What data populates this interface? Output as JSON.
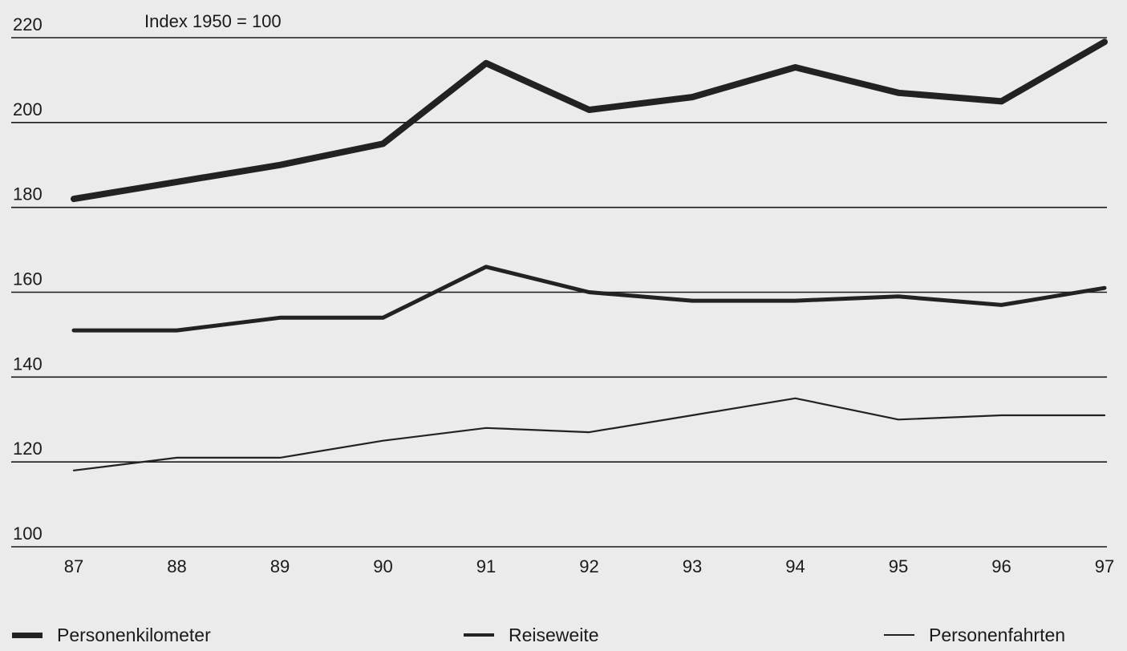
{
  "chart_data": {
    "type": "line",
    "subtitle": "Index 1950 = 100",
    "x": [
      "87",
      "88",
      "89",
      "90",
      "91",
      "92",
      "93",
      "94",
      "95",
      "96",
      "97"
    ],
    "yticks": [
      "220",
      "200",
      "180",
      "160",
      "140",
      "120",
      "100"
    ],
    "ylim": [
      100,
      220
    ],
    "grid": true,
    "legend_position": "bottom",
    "series": [
      {
        "name": "Personenkilometer",
        "values": [
          182,
          186,
          190,
          195,
          214,
          203,
          206,
          213,
          207,
          205,
          219
        ],
        "weight": "heavy"
      },
      {
        "name": "Reiseweite",
        "values": [
          151,
          151,
          154,
          154,
          166,
          160,
          158,
          158,
          159,
          157,
          161
        ],
        "weight": "medium"
      },
      {
        "name": "Personenfahrten",
        "values": [
          118,
          121,
          121,
          125,
          128,
          127,
          131,
          135,
          130,
          131,
          131
        ],
        "weight": "light"
      }
    ]
  }
}
